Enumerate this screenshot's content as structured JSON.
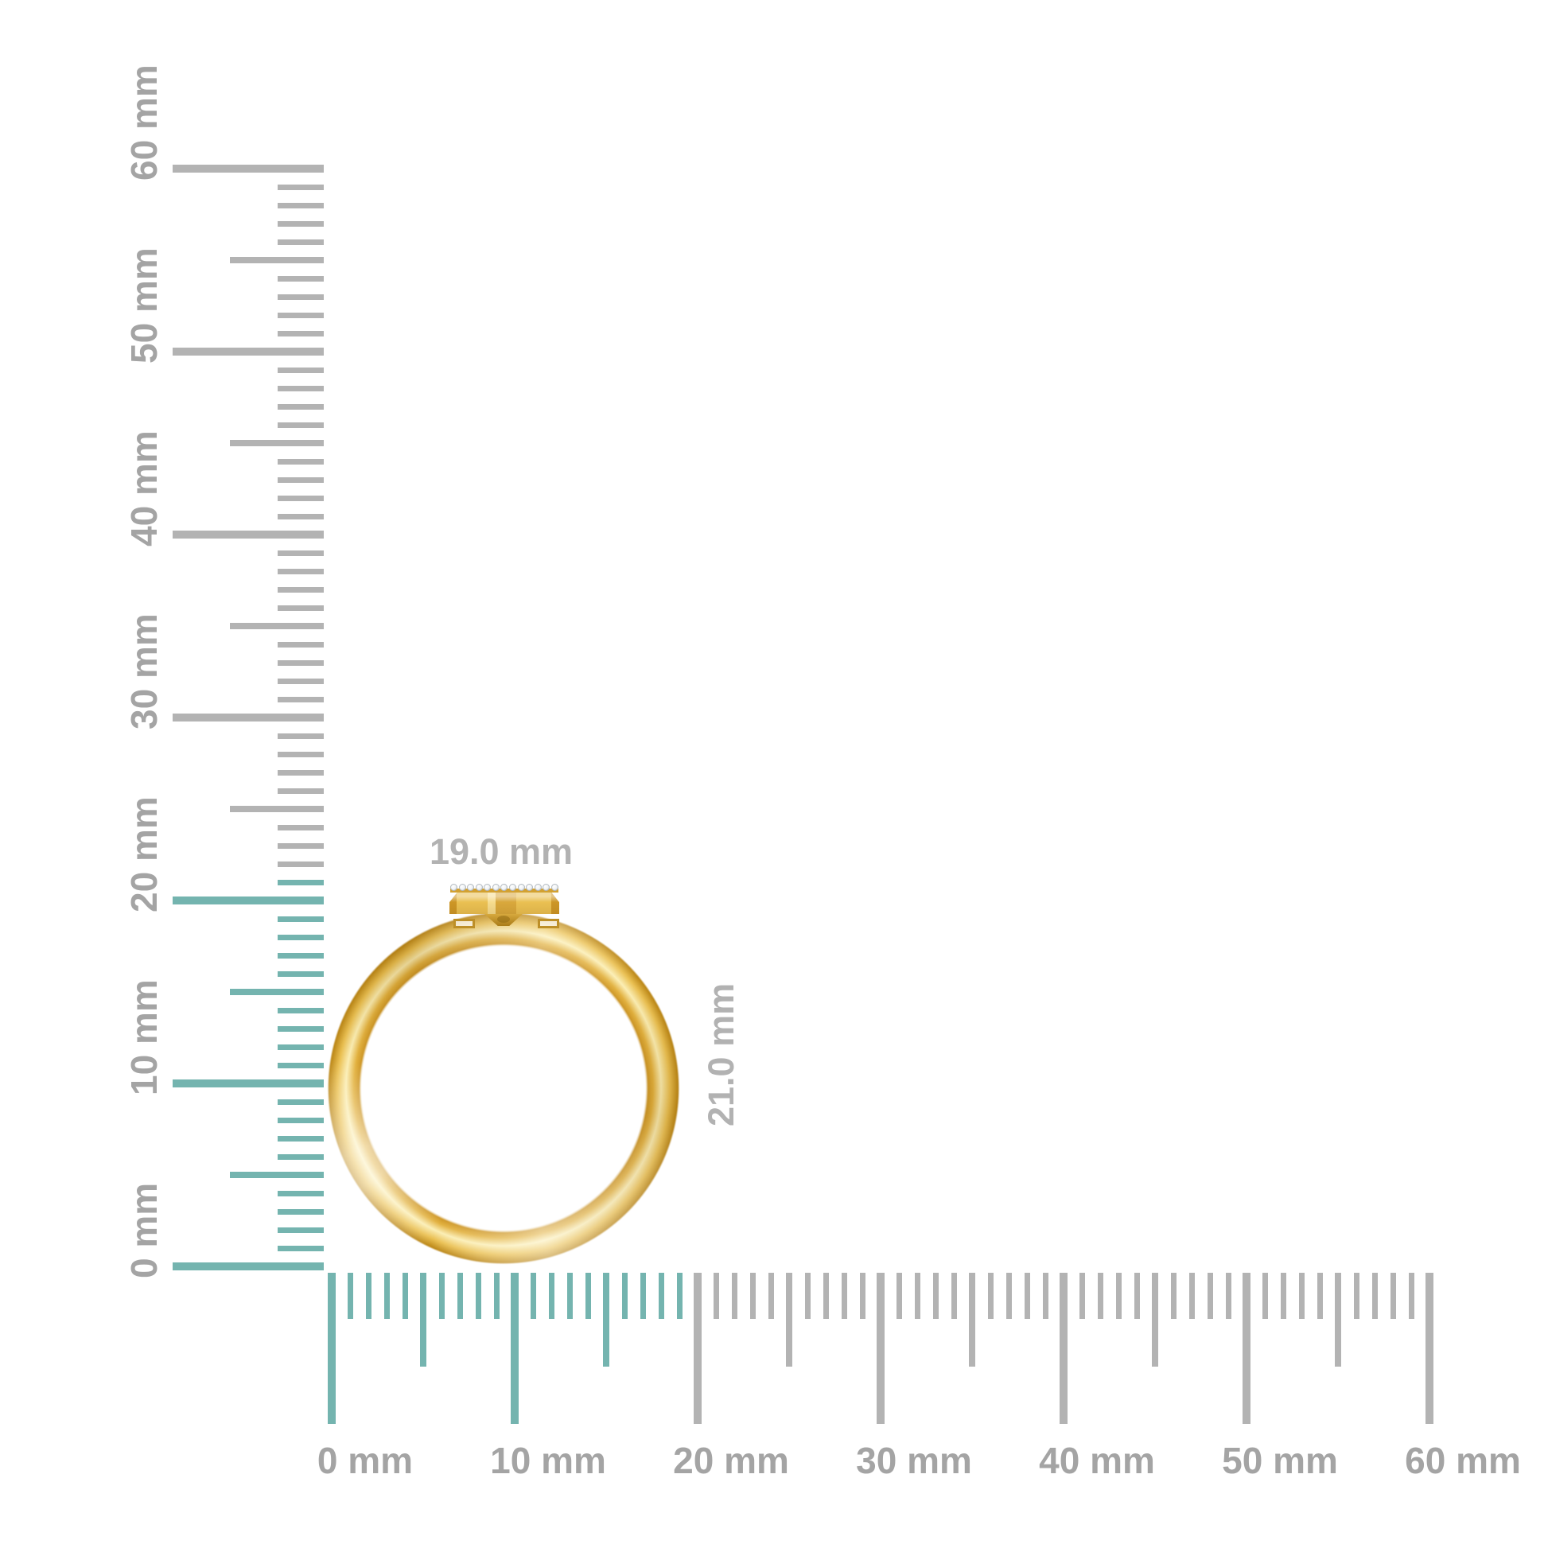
{
  "measurements": {
    "width": "19.0 mm",
    "height": "21.0 mm"
  },
  "rulers": {
    "unit": "mm",
    "min_mm": 0,
    "max_mm": 60,
    "minor_step_mm": 1,
    "half_step_mm": 5,
    "major_step_mm": 10,
    "vertical": {
      "labels": [
        "0 mm",
        "10 mm",
        "20 mm",
        "30 mm",
        "40 mm",
        "50 mm",
        "60 mm"
      ],
      "highlight_through_mm": 21
    },
    "horizontal": {
      "labels": [
        "0 mm",
        "10 mm",
        "20 mm",
        "30 mm",
        "40 mm",
        "50 mm",
        "60 mm"
      ],
      "highlight_through_mm": 19
    }
  },
  "ring": {
    "diamond_count": 13
  },
  "colors": {
    "background": "#ffffff",
    "tick_highlight": "#74b4af",
    "tick_plain": "#b3b3b3",
    "ruler_label": "#a4a4a4",
    "dimension_label": "#b2b2b2",
    "gold_darkest": "#b98413",
    "gold_dark": "#cd9626",
    "gold_mid": "#eac052",
    "gold_light": "#f6dc8e",
    "gold_highlight": "#fbeeb4",
    "diamond_fill": "#eef1f4",
    "diamond_edge": "#b3bac0"
  }
}
